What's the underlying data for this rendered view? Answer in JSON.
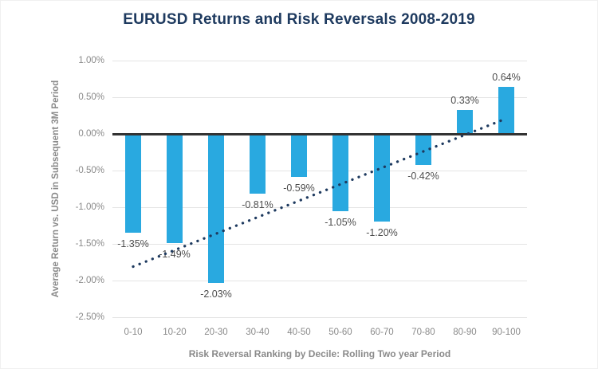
{
  "title": "EURUSD Returns and Risk Reversals 2008-2019",
  "chart_data": {
    "type": "bar",
    "categories": [
      "0-10",
      "10-20",
      "20-30",
      "30-40",
      "40-50",
      "50-60",
      "60-70",
      "70-80",
      "80-90",
      "90-100"
    ],
    "values": [
      -1.35,
      -1.49,
      -2.03,
      -0.81,
      -0.59,
      -1.05,
      -1.2,
      -0.42,
      0.33,
      0.64
    ],
    "bar_labels": [
      "-1.35%",
      "-1.49%",
      "-2.03%",
      "-0.81%",
      "-0.59%",
      "-1.05%",
      "-1.20%",
      "-0.42%",
      "0.33%",
      "0.64%"
    ],
    "xlabel": "Risk Reversal Ranking by Decile: Rolling Two year Period",
    "ylabel": "Average Return vs. USD in Subsequent 3M Period",
    "ylim": [
      -2.5,
      1.0
    ],
    "ytick_step": 0.5,
    "ytick_labels": [
      "1.00%",
      "0.50%",
      "0.00%",
      "-0.50%",
      "-1.00%",
      "-1.50%",
      "-2.00%",
      "-2.50%"
    ],
    "grid": true,
    "legend": "none",
    "trendline": {
      "style": "dotted-linear",
      "start_category": "0-10",
      "end_category": "90-100",
      "start_value_pct": -1.81,
      "end_value_pct": 0.21
    },
    "colors": {
      "bar": "#29A9E0",
      "trend": "#1E3A5F",
      "title": "#1E3A5F",
      "zero_line": "#333333",
      "gridline": "#E4E4E4",
      "axis_text": "#8A8A8A",
      "data_label": "#4D4D4D",
      "background": "#FFFFFF"
    }
  }
}
